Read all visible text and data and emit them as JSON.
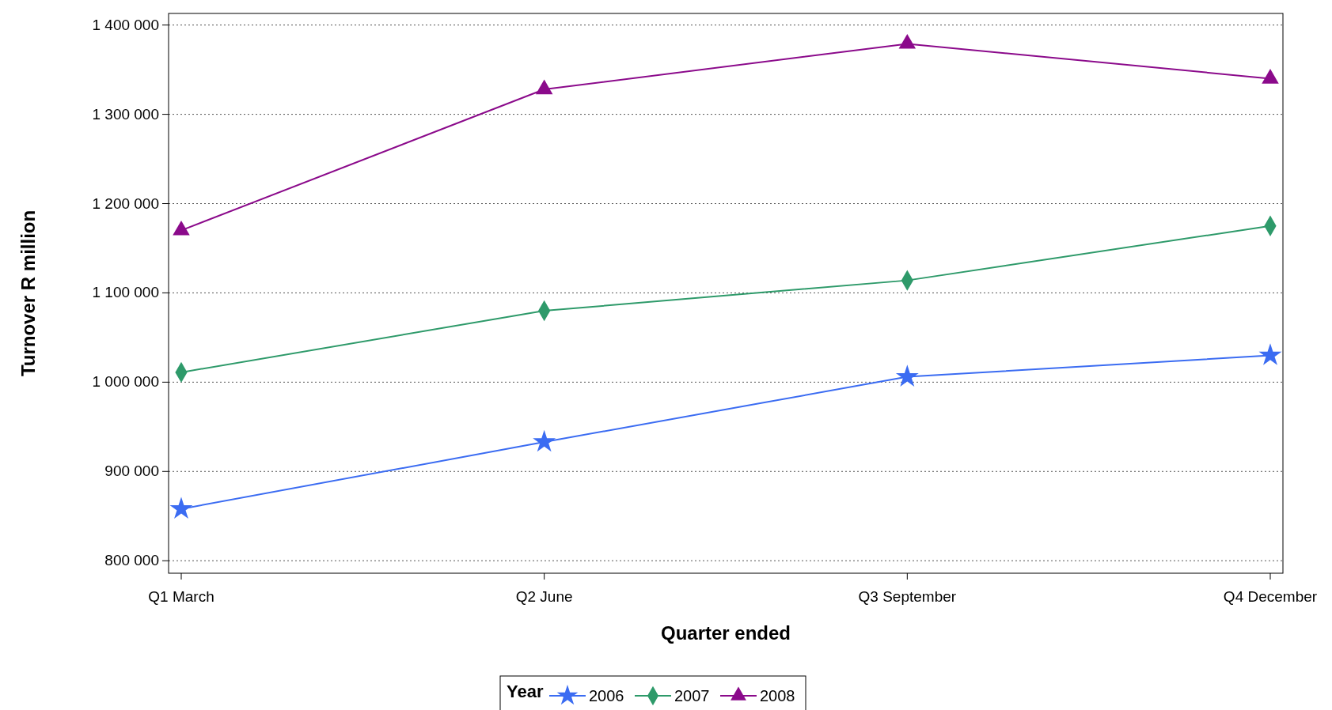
{
  "chart_data": {
    "type": "line",
    "xlabel": "Quarter ended",
    "ylabel": "Turnover R million",
    "legend_title": "Year",
    "categories": [
      "Q1 March",
      "Q2 June",
      "Q3 September",
      "Q4 December"
    ],
    "series": [
      {
        "name": "2006",
        "color": "#3b6cf2",
        "marker": "star",
        "values": [
          858000,
          933000,
          1006000,
          1030000
        ]
      },
      {
        "name": "2007",
        "color": "#2e9a6a",
        "marker": "diamond",
        "values": [
          1011000,
          1080000,
          1114000,
          1175000
        ]
      },
      {
        "name": "2008",
        "color": "#8b0a8b",
        "marker": "triangle",
        "values": [
          1170000,
          1328000,
          1379000,
          1340000
        ]
      }
    ],
    "ylim": [
      786000,
      1413000
    ],
    "yticks": [
      {
        "value": 800000,
        "label": "800 000"
      },
      {
        "value": 900000,
        "label": "900 000"
      },
      {
        "value": 1000000,
        "label": "1 000 000"
      },
      {
        "value": 1100000,
        "label": "1 100 000"
      },
      {
        "value": 1200000,
        "label": "1 200 000"
      },
      {
        "value": 1300000,
        "label": "1 300 000"
      },
      {
        "value": 1400000,
        "label": "1 400 000"
      }
    ],
    "grid": "y",
    "legend": "bottom",
    "line_style": "solid"
  }
}
